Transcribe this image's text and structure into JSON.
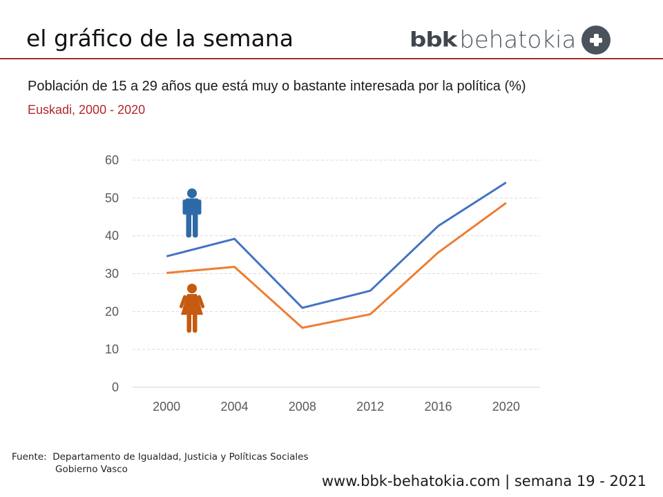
{
  "header": {
    "title": "el gráfico de la semana",
    "logo": {
      "bold_part": "bbk",
      "light_part": "behatokia",
      "icon": "plus-circle-icon"
    },
    "rule_color": "#9e2a2b"
  },
  "chart_data": {
    "type": "line",
    "title": "Población de 15 a 29 años que está muy o bastante interesada por la política (%)",
    "subtitle": "Euskadi, 2000 - 2020",
    "xlabel": "",
    "ylabel": "",
    "categories": [
      "2000",
      "2004",
      "2008",
      "2012",
      "2016",
      "2020"
    ],
    "ylim": [
      0,
      60
    ],
    "yticks": [
      0,
      10,
      20,
      30,
      40,
      50,
      60
    ],
    "grid": true,
    "legend": "icons-left",
    "series": [
      {
        "name": "Hombres",
        "icon": "male-figure-icon",
        "color": "#4472c4",
        "icon_color": "#2e6aa8",
        "values": [
          34.6,
          39.2,
          21.0,
          25.5,
          42.6,
          54.1
        ]
      },
      {
        "name": "Mujeres",
        "icon": "female-figure-icon",
        "color": "#ed7d31",
        "icon_color": "#c55a11",
        "values": [
          30.2,
          31.8,
          15.7,
          19.3,
          35.6,
          48.7
        ]
      }
    ]
  },
  "source": {
    "label": "Fuente:",
    "line1": "Departamento de Igualdad, Justicia y Políticas Sociales",
    "line2": "Gobierno Vasco"
  },
  "footer": {
    "text": "www.bbk-behatokia.com | semana 19 - 2021"
  }
}
